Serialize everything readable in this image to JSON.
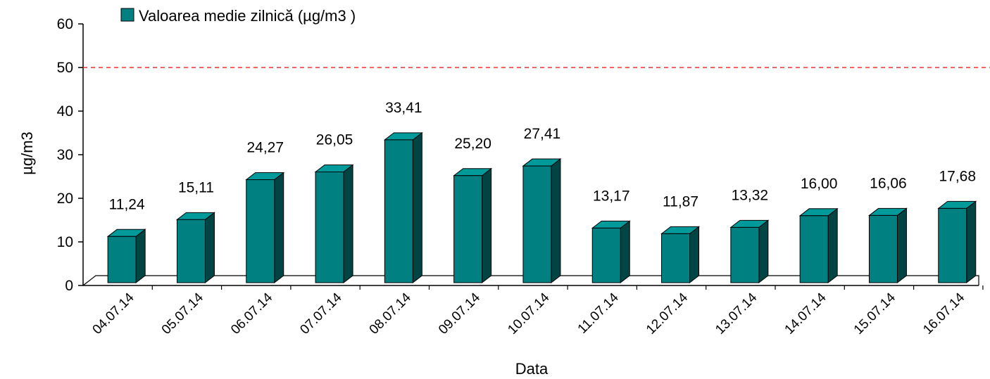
{
  "chart_data": {
    "type": "bar",
    "title": "",
    "xlabel": "Data",
    "ylabel": "µg/m3",
    "ylim": [
      0,
      60
    ],
    "yticks": [
      0,
      10,
      20,
      30,
      40,
      50,
      60
    ],
    "limit_line": 50,
    "grid": false,
    "legend": "top-left",
    "categories": [
      "04.07.14",
      "05.07.14",
      "06.07.14",
      "07.07.14",
      "08.07.14",
      "09.07.14",
      "10.07.14",
      "11.07.14",
      "12.07.14",
      "13.07.14",
      "14.07.14",
      "15.07.14",
      "16.07.14"
    ],
    "series": [
      {
        "name": "Valoarea medie zilnică (µg/m3 )",
        "values": [
          11.24,
          15.11,
          24.27,
          26.05,
          33.41,
          25.2,
          27.41,
          13.17,
          11.87,
          13.32,
          16.0,
          16.06,
          17.68
        ],
        "labels": [
          "11,24",
          "15,11",
          "24,27",
          "26,05",
          "33,41",
          "25,20",
          "27,41",
          "13,17",
          "11,87",
          "13,32",
          "16,00",
          "16,06",
          "17,68"
        ]
      }
    ],
    "colors": {
      "bar_front": "#008080",
      "bar_side": "#004444",
      "bar_top": "#009a9a",
      "limit_line": "#e8322e"
    }
  }
}
